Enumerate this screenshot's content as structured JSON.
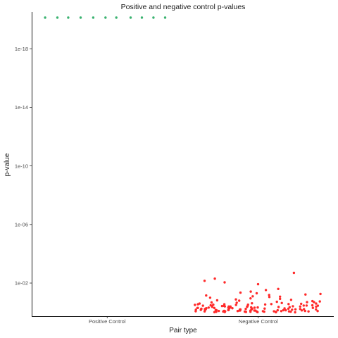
{
  "chart_data": {
    "type": "scatter",
    "title": "Positive and negative control p-values",
    "xlabel": "Pair type",
    "ylabel": "p-value",
    "categories": [
      "Positive Control",
      "Negative Control"
    ],
    "y_scale": "log10",
    "ylim": [
      1,
      1e-20
    ],
    "y_ticks": [
      {
        "value": 1e-18,
        "label": "1e-18"
      },
      {
        "value": 1e-14,
        "label": "1e-14"
      },
      {
        "value": 1e-10,
        "label": "1e-10"
      },
      {
        "value": 1e-06,
        "label": "1e-06"
      },
      {
        "value": 0.01,
        "label": "1e-02"
      }
    ],
    "grid": false,
    "legend": "none",
    "series": [
      {
        "category": "Positive Control",
        "color": "#3CB371",
        "y": [
          2e-20,
          2e-20,
          2e-20,
          2e-20,
          2e-20,
          2e-20,
          2e-20,
          2e-20,
          2e-20,
          2e-20,
          2e-20
        ]
      },
      {
        "category": "Negative Control",
        "color": "#FF2A2A",
        "y": [
          0.002,
          0.025,
          0.007,
          0.012,
          0.009,
          0.085,
          0.005,
          0.03,
          0.05,
          0.15,
          0.6,
          0.2,
          0.35,
          0.1,
          0.45,
          0.25,
          0.8,
          0.3,
          0.55,
          0.12,
          0.4,
          0.7,
          0.18,
          0.65,
          0.28,
          0.9,
          0.22,
          0.5,
          0.38,
          0.75,
          0.16,
          0.6,
          0.33,
          0.85,
          0.2,
          0.48,
          0.95,
          0.27,
          0.58,
          0.14,
          0.72,
          0.36,
          0.88,
          0.24,
          0.52,
          0.68,
          0.42,
          0.82,
          0.19,
          0.63,
          0.31,
          0.77,
          0.46,
          0.92,
          0.26,
          0.57,
          0.11,
          0.7,
          0.39,
          0.86,
          0.21,
          0.54,
          0.66,
          0.34,
          0.81,
          0.17,
          0.61,
          0.44,
          0.93,
          0.29,
          0.5,
          0.13,
          0.74,
          0.37,
          0.89,
          0.23,
          0.56,
          0.69,
          0.41,
          0.84,
          0.045,
          0.065,
          0.038,
          0.07,
          0.055,
          0.08,
          0.06,
          0.09,
          0.75,
          0.33,
          0.62,
          0.87,
          0.48,
          0.28,
          0.97,
          0.53,
          0.71,
          0.43,
          0.8,
          0.36,
          0.59,
          0.92,
          0.25,
          0.67,
          0.5,
          0.83,
          0.4,
          0.73,
          0.3,
          0.96,
          0.57,
          0.46,
          0.88,
          0.35,
          0.64,
          0.78,
          0.52,
          0.99,
          0.42,
          0.69,
          0.31,
          0.85,
          0.6,
          0.94,
          0.47,
          0.76,
          0.38,
          0.66,
          0.9,
          0.55,
          0.27,
          0.81,
          0.49,
          0.72,
          0.98,
          0.4,
          0.63,
          0.86,
          0.34,
          0.58
        ]
      }
    ]
  }
}
